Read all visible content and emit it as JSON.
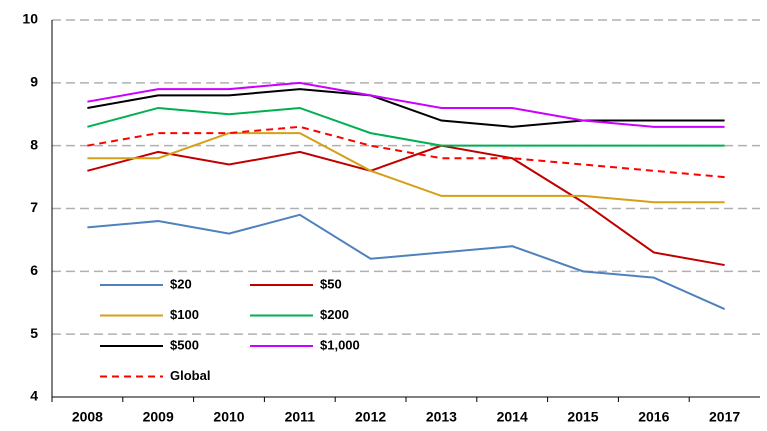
{
  "chart_data": {
    "type": "line",
    "categories": [
      "2008",
      "2009",
      "2010",
      "2011",
      "2012",
      "2013",
      "2014",
      "2015",
      "2016",
      "2017"
    ],
    "series": [
      {
        "name": "$20",
        "color": "#4f81bd",
        "values": [
          6.7,
          6.8,
          6.6,
          6.9,
          6.2,
          6.3,
          6.4,
          6.0,
          5.9,
          5.4
        ]
      },
      {
        "name": "$50",
        "color": "#c00000",
        "values": [
          7.6,
          7.9,
          7.7,
          7.9,
          7.6,
          8.0,
          7.8,
          7.1,
          6.3,
          6.1
        ]
      },
      {
        "name": "$100",
        "color": "#d4a017",
        "values": [
          7.8,
          7.8,
          8.2,
          8.2,
          7.6,
          7.2,
          7.2,
          7.2,
          7.1,
          7.1
        ]
      },
      {
        "name": "$200",
        "color": "#00b050",
        "values": [
          8.3,
          8.6,
          8.5,
          8.6,
          8.2,
          8.0,
          8.0,
          8.0,
          8.0,
          8.0
        ]
      },
      {
        "name": "$500",
        "color": "#000000",
        "values": [
          8.6,
          8.8,
          8.8,
          8.9,
          8.8,
          8.4,
          8.3,
          8.4,
          8.4,
          8.4
        ]
      },
      {
        "name": "$1,000",
        "color": "#cc00ff",
        "values": [
          8.7,
          8.9,
          8.9,
          9.0,
          8.8,
          8.6,
          8.6,
          8.4,
          8.3,
          8.3
        ]
      },
      {
        "name": "Global",
        "color": "#ff0000",
        "dashed": true,
        "values": [
          8.0,
          8.2,
          8.2,
          8.3,
          8.0,
          7.8,
          7.8,
          7.7,
          7.6,
          7.5
        ]
      }
    ],
    "ylim": [
      4,
      10
    ],
    "yticks": [
      4,
      5,
      6,
      7,
      8,
      9,
      10
    ],
    "grid": true,
    "legend": "lower left"
  }
}
